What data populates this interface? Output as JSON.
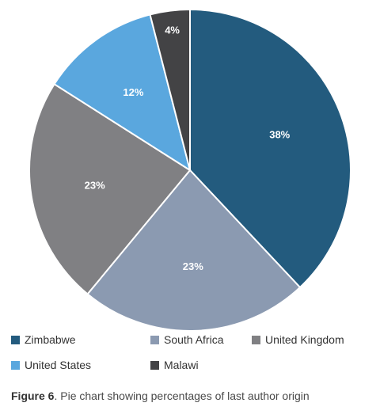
{
  "chart_data": {
    "type": "pie",
    "slices": [
      {
        "label": "Zimbabwe",
        "value": 38,
        "value_label": "38%",
        "color": "#235b7e"
      },
      {
        "label": "South Africa",
        "value": 23,
        "value_label": "23%",
        "color": "#8b9ab1"
      },
      {
        "label": "United Kingdom",
        "value": 23,
        "value_label": "23%",
        "color": "#808083"
      },
      {
        "label": "United States",
        "value": 12,
        "value_label": "12%",
        "color": "#5aa7de"
      },
      {
        "label": "Malawi",
        "value": 4,
        "value_label": "4%",
        "color": "#434345"
      }
    ],
    "legend_position": "bottom"
  },
  "caption": {
    "figure_label": "Figure 6",
    "text": ". Pie chart showing percentages of last author origin"
  }
}
